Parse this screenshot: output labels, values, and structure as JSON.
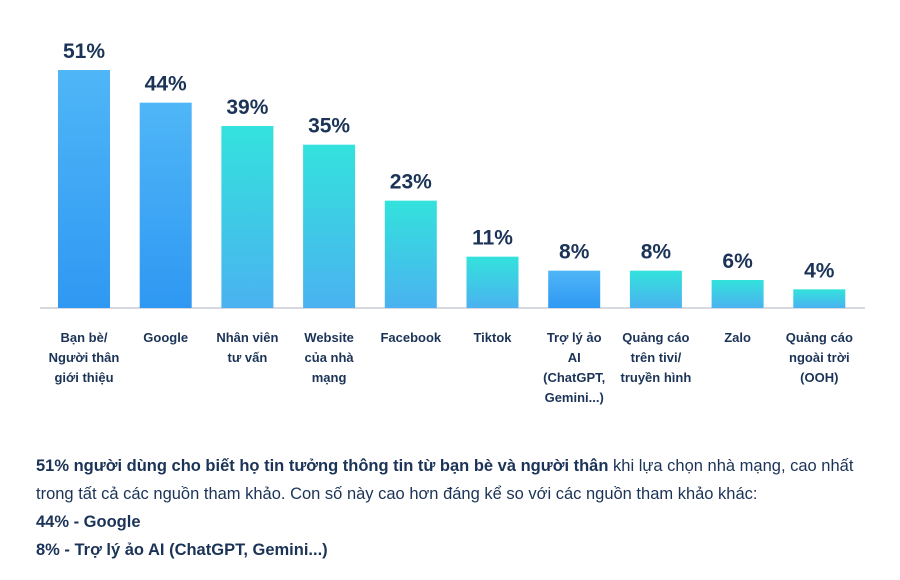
{
  "chart_data": {
    "type": "bar",
    "categories": [
      [
        "Bạn bè/",
        "Người thân",
        "giới thiệu"
      ],
      [
        "Google"
      ],
      [
        "Nhân viên",
        "tư vấn"
      ],
      [
        "Website",
        "của nhà",
        "mạng"
      ],
      [
        "Facebook"
      ],
      [
        "Tiktok"
      ],
      [
        "Trợ lý ảo",
        "AI",
        "(ChatGPT,",
        "Gemini...)"
      ],
      [
        "Quảng cáo",
        "trên tivi/",
        "truyền hình"
      ],
      [
        "Zalo"
      ],
      [
        "Quảng cáo",
        "ngoài trời",
        "(OOH)"
      ]
    ],
    "values": [
      51,
      44,
      39,
      35,
      23,
      11,
      8,
      8,
      6,
      4
    ],
    "value_labels": [
      "51%",
      "44%",
      "39%",
      "35%",
      "23%",
      "11%",
      "8%",
      "8%",
      "6%",
      "4%"
    ],
    "bar_styles": [
      "blue",
      "blue",
      "teal",
      "teal",
      "teal",
      "teal",
      "blue",
      "teal",
      "teal",
      "teal"
    ],
    "ylim": [
      0,
      51
    ],
    "grid": false,
    "legend": "none"
  },
  "colors": {
    "blue_top": "#4fb6f7",
    "blue_bottom": "#2f98f2",
    "teal_top": "#33e2dc",
    "teal_bottom": "#4ab2f0",
    "text": "#1b3357",
    "axis": "#c9ced6"
  },
  "caption": {
    "line1_bold": "51% người dùng cho biết họ tin tưởng thông tin từ bạn bè và người thân",
    "line1_rest": " khi lựa chọn nhà mạng, cao nhất trong tất cả các nguồn tham khảo. Con số này cao hơn đáng kể so với các nguồn tham khảo khác:",
    "line2": "44% - Google",
    "line3": "8% - Trợ lý ảo AI (ChatGPT, Gemini...)"
  }
}
